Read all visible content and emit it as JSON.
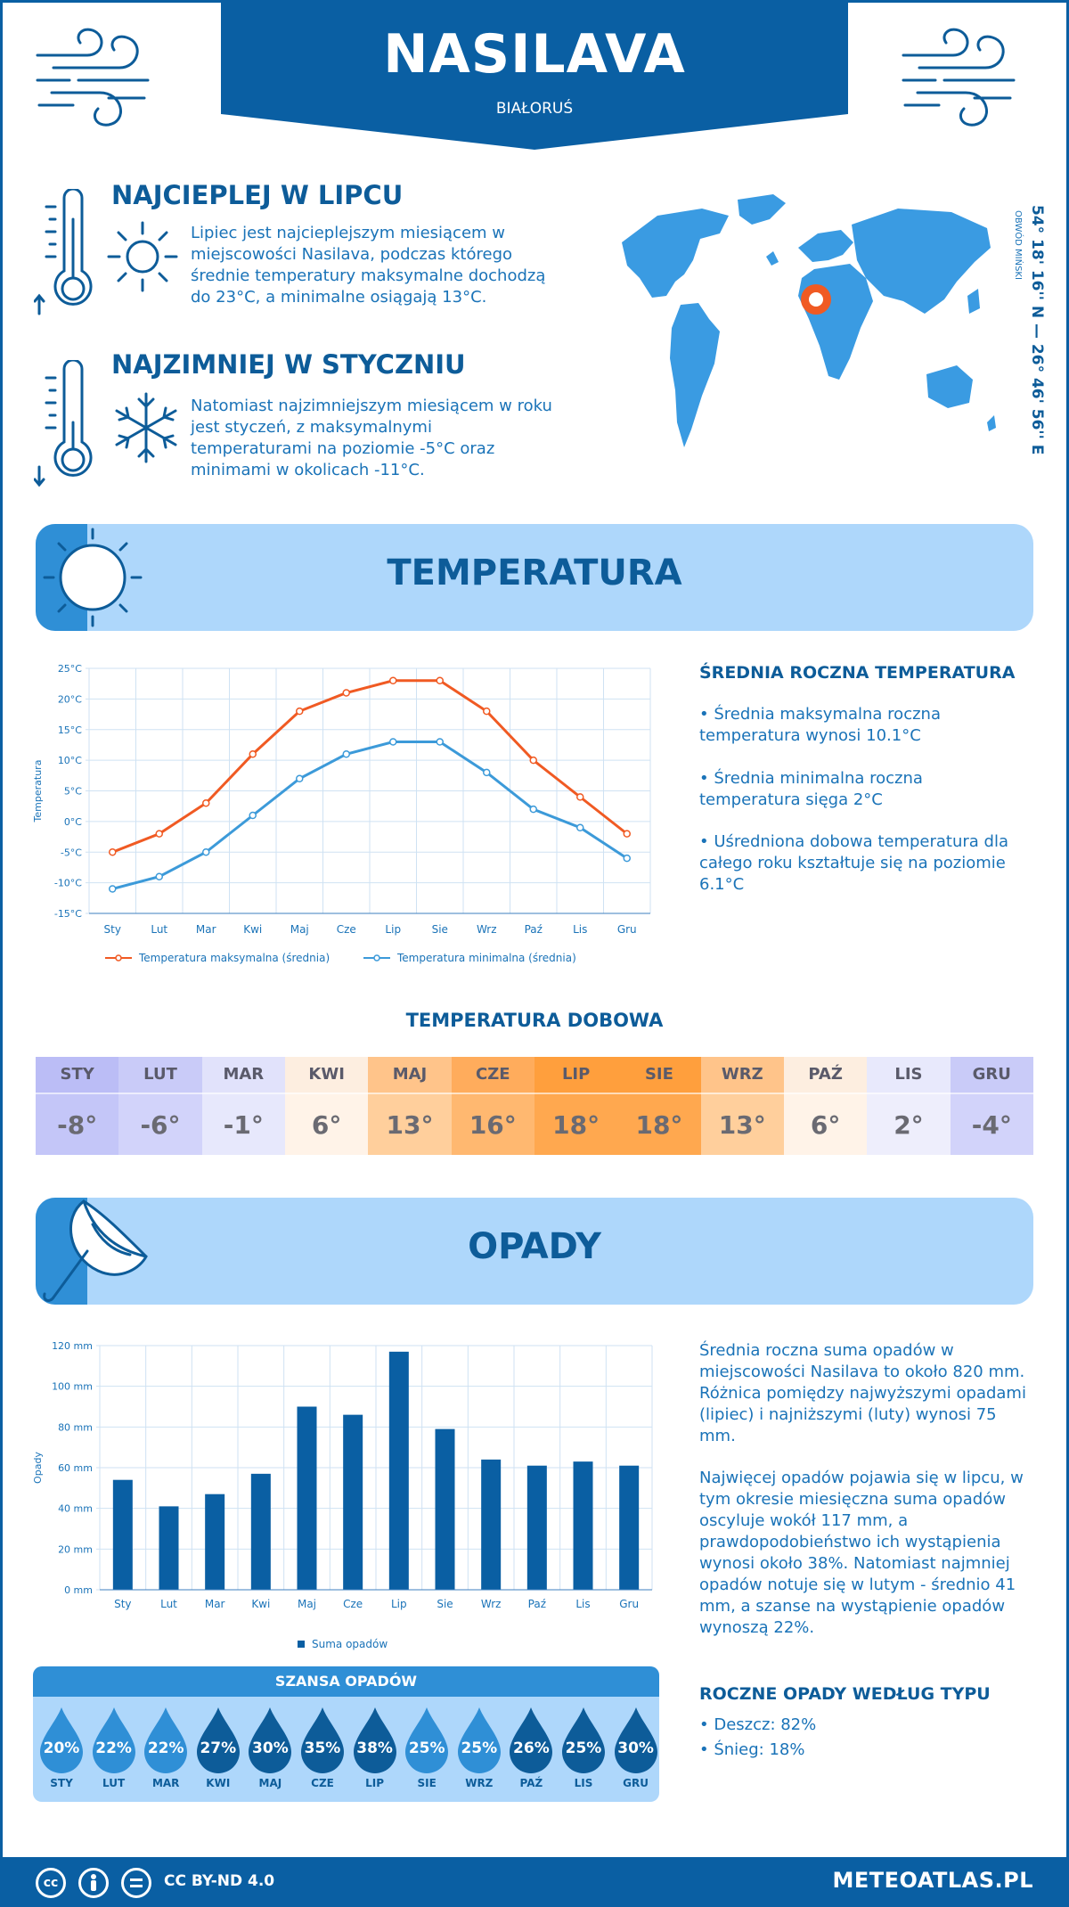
{
  "header": {
    "city": "NASILAVA",
    "country": "BIAŁORUŚ"
  },
  "warmest": {
    "title": "NAJCIEPLEJ W LIPCU",
    "text": "Lipiec jest najcieplejszym miesiącem w miejscowości Nasilava, podczas którego średnie temperatury maksymalne dochodzą do 23°C, a minimalne osiągają 13°C."
  },
  "coldest": {
    "title": "NAJZIMNIEJ W STYCZNIU",
    "text": "Natomiast najzimniejszym miesiącem w roku jest styczeń, z maksymalnymi temperaturami na poziomie -5°C oraz minimami w okolicach -11°C."
  },
  "map": {
    "coords": "54° 18' 16'' N — 26° 46' 56'' E",
    "region": "OBWÓD MIŃSKI"
  },
  "temperature": {
    "title": "TEMPERATURA",
    "side_title": "ŚREDNIA ROCZNA TEMPERATURA",
    "bullets": [
      "• Średnia maksymalna roczna temperatura wynosi 10.1°C",
      "• Średnia minimalna roczna temperatura sięga 2°C",
      "• Uśredniona dobowa temperatura dla całego roku kształtuje się na poziomie 6.1°C"
    ]
  },
  "daily": {
    "title": "TEMPERATURA DOBOWA",
    "months": [
      "STY",
      "LUT",
      "MAR",
      "KWI",
      "MAJ",
      "CZE",
      "LIP",
      "SIE",
      "WRZ",
      "PAŹ",
      "LIS",
      "GRU"
    ],
    "values": [
      "-8°",
      "-6°",
      "-1°",
      "6°",
      "13°",
      "16°",
      "18°",
      "18°",
      "13°",
      "6°",
      "2°",
      "-4°"
    ],
    "head_colors": [
      "#bbbdf6",
      "#c9cbf8",
      "#e1e2fb",
      "#fdeee0",
      "#ffc48a",
      "#ffac5c",
      "#ff9f3d",
      "#ff9f3d",
      "#ffc48a",
      "#fdeee0",
      "#e8e9fc",
      "#c9cbf8"
    ],
    "cell_colors": [
      "#c4c6f8",
      "#d2d3fa",
      "#e7e8fc",
      "#fff3e8",
      "#ffcf9c",
      "#ffb870",
      "#ffa84f",
      "#ffa84f",
      "#ffcf9c",
      "#fff3e8",
      "#eeeefc",
      "#d2d3fa"
    ]
  },
  "precip": {
    "title": "OPADY",
    "text1": "Średnia roczna suma opadów w miejscowości Nasilava to około 820 mm. Różnica pomiędzy najwyższymi opadami (lipiec) i najniższymi (luty) wynosi 75 mm.",
    "text2": "Najwięcej opadów pojawia się w lipcu, w tym okresie miesięczna suma opadów oscyluje wokół 117 mm, a prawdopodobieństwo ich wystąpienia wynosi około 38%. Natomiast najmniej opadów notuje się w lutym - średnio 41 mm, a szanse na wystąpienie opadów wynoszą 22%.",
    "type_title": "ROCZNE OPADY WEDŁUG TYPU",
    "types": [
      "• Deszcz: 82%",
      "• Śnieg: 18%"
    ]
  },
  "chance": {
    "title": "SZANSA OPADÓW",
    "months": [
      "STY",
      "LUT",
      "MAR",
      "KWI",
      "MAJ",
      "CZE",
      "LIP",
      "SIE",
      "WRZ",
      "PAŹ",
      "LIS",
      "GRU"
    ],
    "values": [
      "20%",
      "22%",
      "22%",
      "27%",
      "30%",
      "35%",
      "38%",
      "25%",
      "25%",
      "26%",
      "25%",
      "30%"
    ],
    "colors": [
      "#2f8fd6",
      "#2f8fd6",
      "#2f8fd6",
      "#0d5c99",
      "#0d5c99",
      "#0d5c99",
      "#0d5c99",
      "#2f8fd6",
      "#2f8fd6",
      "#0d5c99",
      "#0d5c99",
      "#0d5c99"
    ]
  },
  "footer": {
    "license": "CC BY-ND 4.0",
    "site": "METEOATLAS.PL"
  },
  "chart_data": [
    {
      "type": "line",
      "categories": [
        "Sty",
        "Lut",
        "Mar",
        "Kwi",
        "Maj",
        "Cze",
        "Lip",
        "Sie",
        "Wrz",
        "Paź",
        "Lis",
        "Gru"
      ],
      "series": [
        {
          "name": "Temperatura maksymalna (średnia)",
          "color": "#f05a23",
          "values": [
            -5,
            -2,
            3,
            11,
            18,
            21,
            23,
            23,
            18,
            10,
            4,
            -2
          ]
        },
        {
          "name": "Temperatura minimalna (średnia)",
          "color": "#3c9ad9",
          "values": [
            -11,
            -9,
            -5,
            1,
            7,
            11,
            13,
            13,
            8,
            2,
            -1,
            -6
          ]
        }
      ],
      "ylabel": "Temperatura",
      "yticks": [
        "25°C",
        "20°C",
        "15°C",
        "10°C",
        "5°C",
        "0°C",
        "-5°C",
        "-10°C",
        "-15°C"
      ],
      "ylim": [
        -15,
        25
      ],
      "grid": true,
      "legend": "bottom"
    },
    {
      "type": "bar",
      "categories": [
        "Sty",
        "Lut",
        "Mar",
        "Kwi",
        "Maj",
        "Cze",
        "Lip",
        "Sie",
        "Wrz",
        "Paź",
        "Lis",
        "Gru"
      ],
      "series": [
        {
          "name": "Suma opadów",
          "color": "#0a5fa3",
          "values": [
            54,
            41,
            47,
            57,
            90,
            86,
            117,
            79,
            64,
            61,
            63,
            61
          ]
        }
      ],
      "ylabel": "Opady",
      "yticks": [
        "120 mm",
        "100 mm",
        "80 mm",
        "60 mm",
        "40 mm",
        "20 mm",
        "0 mm"
      ],
      "ylim": [
        0,
        120
      ],
      "grid": true,
      "legend": "bottom"
    }
  ]
}
